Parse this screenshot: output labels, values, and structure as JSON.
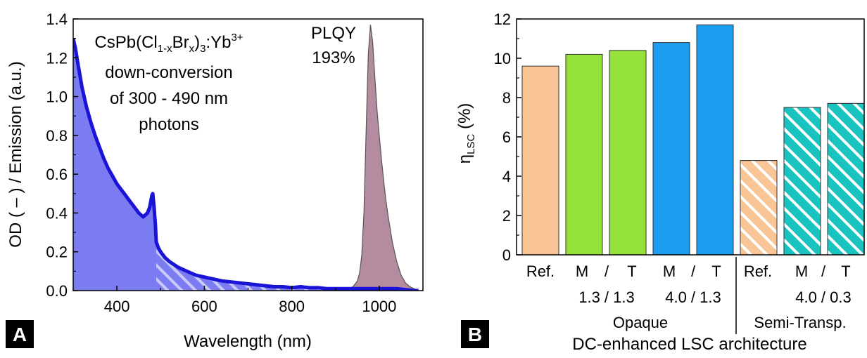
{
  "chart_data": [
    {
      "panel": "A",
      "type": "area",
      "xlabel": "Wavelength (nm)",
      "ylabel": "OD ( – ) / Emission (a.u.)",
      "xlim": [
        300,
        1100
      ],
      "ylim": [
        0.0,
        1.4
      ],
      "xticks": [
        "400",
        "600",
        "800",
        "1000"
      ],
      "yticks": [
        "0.0",
        "0.2",
        "0.4",
        "0.6",
        "0.8",
        "1.0",
        "1.2",
        "1.4"
      ],
      "annotation": {
        "formula": "CsPb(Cl",
        "sub1": "1-x",
        "formula2": "Br",
        "sub2": "x",
        "formula3": ")",
        "sub3": "3",
        "formula4": ":Yb",
        "sup": "3+",
        "line2": "down-conversion",
        "line3": "of 300 - 490 nm",
        "line4": "photons"
      },
      "plqy": {
        "line1": "PLQY",
        "line2": "193%"
      },
      "series": [
        {
          "kind": "absorption",
          "color": "#1a14d6",
          "fill": "#7b7cf2",
          "hatch_from_x": 490,
          "x": [
            300,
            305,
            310,
            320,
            330,
            340,
            350,
            360,
            370,
            380,
            390,
            400,
            410,
            420,
            430,
            440,
            450,
            460,
            470,
            475,
            480,
            482,
            485,
            488,
            490,
            495,
            500,
            510,
            520,
            540,
            560,
            580,
            600,
            620,
            640,
            660,
            680,
            700,
            720,
            740,
            760,
            780,
            800,
            820,
            840,
            860,
            880,
            900,
            920,
            940,
            960,
            980,
            1000,
            1020,
            1040,
            1060,
            1080,
            1090
          ],
          "y": [
            1.3,
            1.25,
            1.18,
            1.05,
            0.95,
            0.87,
            0.8,
            0.74,
            0.68,
            0.63,
            0.59,
            0.55,
            0.52,
            0.49,
            0.46,
            0.43,
            0.4,
            0.38,
            0.4,
            0.43,
            0.49,
            0.5,
            0.43,
            0.34,
            0.25,
            0.22,
            0.2,
            0.17,
            0.15,
            0.12,
            0.1,
            0.08,
            0.07,
            0.06,
            0.05,
            0.045,
            0.04,
            0.035,
            0.03,
            0.025,
            0.02,
            0.02,
            0.015,
            0.02,
            0.015,
            0.015,
            0.01,
            0.01,
            0.01,
            0.01,
            0.01,
            0.01,
            0.01,
            0.01,
            0.01,
            0.005,
            0.0,
            0.0
          ]
        },
        {
          "kind": "emission",
          "color": "#555555",
          "fill": "#b58ba0",
          "x": [
            920,
            930,
            940,
            950,
            955,
            960,
            965,
            970,
            975,
            980,
            985,
            990,
            995,
            1000,
            1005,
            1010,
            1015,
            1020,
            1030,
            1040,
            1050,
            1060,
            1070,
            1080,
            1090
          ],
          "y": [
            0.0,
            0.01,
            0.02,
            0.05,
            0.09,
            0.18,
            0.4,
            0.82,
            1.22,
            1.37,
            1.28,
            1.1,
            0.93,
            0.8,
            0.68,
            0.57,
            0.47,
            0.39,
            0.25,
            0.15,
            0.08,
            0.04,
            0.02,
            0.01,
            0.0
          ]
        }
      ]
    },
    {
      "panel": "B",
      "type": "bar",
      "ylabel_main": "η",
      "ylabel_sub": "LSC",
      "ylabel_unit": " (%)",
      "ylim": [
        0,
        12
      ],
      "yticks": [
        "0",
        "2",
        "4",
        "6",
        "8",
        "10",
        "12"
      ],
      "bars": [
        {
          "value": 9.6,
          "color": "#f9c596",
          "hatch": false
        },
        {
          "value": 10.2,
          "color": "#95e33a",
          "hatch": false
        },
        {
          "value": 10.4,
          "color": "#95e33a",
          "hatch": false
        },
        {
          "value": 10.8,
          "color": "#1b9df0",
          "hatch": false
        },
        {
          "value": 11.7,
          "color": "#1b9df0",
          "hatch": false
        },
        {
          "value": 4.8,
          "color": "#f9c596",
          "hatch": true
        },
        {
          "value": 7.5,
          "color": "#18c3c0",
          "hatch": true
        },
        {
          "value": 7.7,
          "color": "#18c3c0",
          "hatch": true
        }
      ],
      "labels_row1": [
        "Ref.",
        "M",
        "/",
        "T",
        "M",
        "/",
        "T",
        "Ref.",
        "M",
        "/",
        "T"
      ],
      "labels_row2": [
        "1.3 / 1.3",
        "4.0 / 1.3",
        "4.0 / 0.3"
      ],
      "group_opaque": "Opaque",
      "group_semi": "Semi-Transp.",
      "xlabel": "DC-enhanced LSC architecture"
    }
  ],
  "panel_badges": {
    "a": "A",
    "b": "B"
  }
}
